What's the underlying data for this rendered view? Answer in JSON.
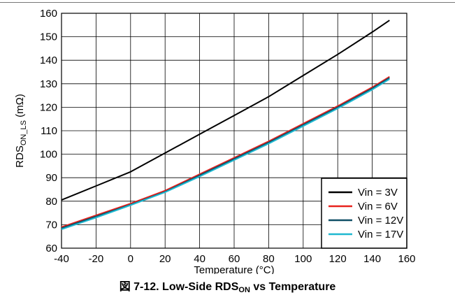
{
  "chart_data": {
    "type": "line",
    "title": "",
    "xlabel": "Temperature (°C)",
    "ylabel_main": "RDS",
    "ylabel_sub": "ON_LS",
    "ylabel_unit": " (mΩ)",
    "xlim": [
      -40,
      160
    ],
    "ylim": [
      60,
      160
    ],
    "x_ticks": [
      -40,
      -20,
      0,
      20,
      40,
      60,
      80,
      100,
      120,
      140,
      160
    ],
    "y_ticks": [
      60,
      70,
      80,
      90,
      100,
      110,
      120,
      130,
      140,
      150,
      160
    ],
    "grid": true,
    "legend_position": "bottom-right",
    "series": [
      {
        "name": "Vin = 3V",
        "color": "#000000",
        "x": [
          -40,
          -20,
          0,
          20,
          40,
          60,
          80,
          100,
          120,
          140,
          150
        ],
        "y": [
          80.5,
          86.5,
          92.5,
          100.5,
          108.5,
          116.5,
          124.5,
          133.5,
          142.5,
          152,
          157
        ]
      },
      {
        "name": "Vin = 6V",
        "color": "#e8231e",
        "x": [
          -40,
          -20,
          0,
          20,
          40,
          60,
          80,
          100,
          120,
          140,
          150
        ],
        "y": [
          69,
          74,
          79,
          84.5,
          91.5,
          98.5,
          105.5,
          113,
          120.5,
          128.5,
          133
        ]
      },
      {
        "name": "Vin = 12V",
        "color": "#0f4f66",
        "x": [
          -40,
          -20,
          0,
          20,
          40,
          60,
          80,
          100,
          120,
          140,
          150
        ],
        "y": [
          68.5,
          73.5,
          78.5,
          84,
          91,
          98,
          105,
          112.5,
          120,
          128,
          132.5
        ]
      },
      {
        "name": "Vin = 17V",
        "color": "#1fb8d0",
        "x": [
          -40,
          -20,
          0,
          20,
          40,
          60,
          80,
          100,
          120,
          140,
          150
        ],
        "y": [
          68,
          73,
          78.3,
          83.8,
          90.5,
          97.5,
          104.5,
          112,
          119.5,
          127.5,
          132
        ]
      }
    ]
  },
  "caption": {
    "prefix": "図 7-12. Low-Side RDS",
    "sub": "ON",
    "suffix": " vs Temperature"
  }
}
